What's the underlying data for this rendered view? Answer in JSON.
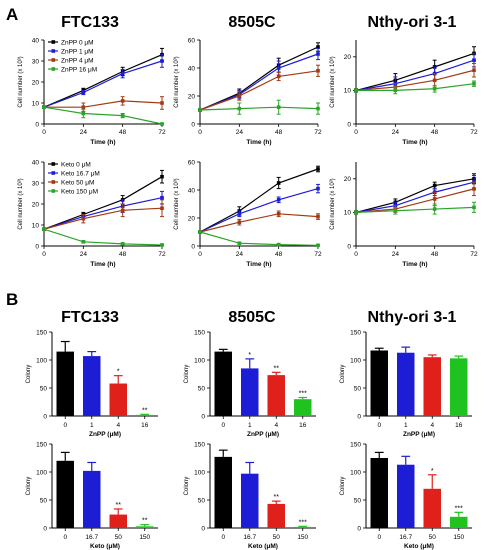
{
  "panel_labels": [
    "A",
    "B"
  ],
  "columns": [
    "FTC133",
    "8505C",
    "Nthy-ori 3-1"
  ],
  "colors": {
    "black": "#000000",
    "blue": "#1d1dd6",
    "red": "#e0201b",
    "green": "#1fc21f",
    "brown": "#a33a12",
    "line_green": "#2aa52a"
  },
  "chart_data": [
    {
      "type": "line",
      "id": "a-ftc-znpp",
      "xlabel": "Time (h)",
      "ylabel": "Cell number (x 10³)",
      "x": [
        0,
        24,
        48,
        72
      ],
      "xlim": [
        0,
        72
      ],
      "ylim": [
        0,
        40
      ],
      "yticks": [
        0,
        10,
        20,
        30,
        40
      ],
      "legend": "top-left",
      "series": [
        {
          "name": "ZnPP 0 μM",
          "color": "black",
          "values": [
            8,
            16,
            25,
            33
          ],
          "err": [
            0.5,
            1,
            2,
            3
          ]
        },
        {
          "name": "ZnPP 1 μM",
          "color": "blue",
          "values": [
            8,
            15,
            24,
            30
          ],
          "err": [
            0.5,
            1,
            2,
            3
          ]
        },
        {
          "name": "ZnPP 4 μM",
          "color": "brown",
          "values": [
            8,
            8,
            11,
            10
          ],
          "err": [
            0.5,
            2,
            2,
            3
          ]
        },
        {
          "name": "ZnPP 16 μM",
          "color": "line_green",
          "values": [
            8,
            5,
            4,
            0
          ],
          "err": [
            0.5,
            2,
            1,
            0.5
          ]
        }
      ]
    },
    {
      "type": "line",
      "id": "a-8505c-znpp",
      "xlabel": "Time (h)",
      "ylabel": "Cell number (x 10³)",
      "x": [
        0,
        24,
        48,
        72
      ],
      "xlim": [
        0,
        72
      ],
      "ylim": [
        0,
        60
      ],
      "yticks": [
        0,
        20,
        40,
        60
      ],
      "series": [
        {
          "name": "ZnPP 0 μM",
          "color": "black",
          "values": [
            10,
            22,
            42,
            55
          ],
          "err": [
            1,
            3,
            5,
            3
          ]
        },
        {
          "name": "ZnPP 1 μM",
          "color": "blue",
          "values": [
            10,
            21,
            40,
            50
          ],
          "err": [
            1,
            3,
            5,
            4
          ]
        },
        {
          "name": "ZnPP 4 μM",
          "color": "brown",
          "values": [
            10,
            20,
            34,
            38
          ],
          "err": [
            1,
            3,
            3,
            4
          ]
        },
        {
          "name": "ZnPP 16 μM",
          "color": "line_green",
          "values": [
            10,
            11,
            12,
            11
          ],
          "err": [
            1,
            4,
            5,
            4
          ]
        }
      ]
    },
    {
      "type": "line",
      "id": "a-nthy-znpp",
      "xlabel": "Time (h)",
      "ylabel": "Cell number (x 10³)",
      "x": [
        0,
        24,
        48,
        72
      ],
      "xlim": [
        0,
        72
      ],
      "ylim": [
        0,
        25
      ],
      "yticks": [
        0,
        10,
        20
      ],
      "series": [
        {
          "name": "ZnPP 0 μM",
          "color": "black",
          "values": [
            10,
            13,
            17,
            21
          ],
          "err": [
            0.5,
            2,
            2,
            2
          ]
        },
        {
          "name": "ZnPP 1 μM",
          "color": "blue",
          "values": [
            10,
            12,
            15,
            19
          ],
          "err": [
            0.5,
            2,
            2,
            2
          ]
        },
        {
          "name": "ZnPP 4 μM",
          "color": "brown",
          "values": [
            10,
            11,
            13,
            16
          ],
          "err": [
            0.5,
            1,
            2,
            2
          ]
        },
        {
          "name": "ZnPP 16 μM",
          "color": "line_green",
          "values": [
            10,
            10,
            10.5,
            12
          ],
          "err": [
            0.5,
            1,
            1,
            0.8
          ]
        }
      ]
    },
    {
      "type": "line",
      "id": "a-ftc-keto",
      "xlabel": "Time (h)",
      "ylabel": "Cell number (x 10³)",
      "x": [
        0,
        24,
        48,
        72
      ],
      "xlim": [
        0,
        72
      ],
      "ylim": [
        0,
        40
      ],
      "yticks": [
        0,
        10,
        20,
        30,
        40
      ],
      "legend": "top-left",
      "series": [
        {
          "name": "Keto 0 μM",
          "color": "black",
          "values": [
            8,
            15,
            22,
            33
          ],
          "err": [
            0.5,
            1,
            2,
            3
          ]
        },
        {
          "name": "Keto 16.7 μM",
          "color": "blue",
          "values": [
            8,
            14,
            19,
            23
          ],
          "err": [
            0.5,
            1,
            3,
            3
          ]
        },
        {
          "name": "Keto 50 μM",
          "color": "brown",
          "values": [
            8,
            13,
            17,
            18
          ],
          "err": [
            0.5,
            2,
            3,
            4
          ]
        },
        {
          "name": "Keto 150 μM",
          "color": "line_green",
          "values": [
            8,
            2,
            1,
            0.5
          ],
          "err": [
            0.5,
            0.5,
            0.5,
            0.3
          ]
        }
      ]
    },
    {
      "type": "line",
      "id": "a-8505c-keto",
      "xlabel": "Time (h)",
      "ylabel": "Cell number (x 10³)",
      "x": [
        0,
        24,
        48,
        72
      ],
      "xlim": [
        0,
        72
      ],
      "ylim": [
        0,
        60
      ],
      "yticks": [
        0,
        20,
        40,
        60
      ],
      "series": [
        {
          "name": "Keto 0 μM",
          "color": "black",
          "values": [
            10,
            25,
            45,
            55
          ],
          "err": [
            1,
            3,
            4,
            2
          ]
        },
        {
          "name": "Keto 16.7 μM",
          "color": "blue",
          "values": [
            10,
            23,
            33,
            41
          ],
          "err": [
            1,
            2,
            2,
            3
          ]
        },
        {
          "name": "Keto 50 μM",
          "color": "brown",
          "values": [
            10,
            17,
            23,
            21
          ],
          "err": [
            1,
            2,
            2,
            2
          ]
        },
        {
          "name": "Keto 150 μM",
          "color": "line_green",
          "values": [
            10,
            2,
            1,
            0.5
          ],
          "err": [
            1,
            0.5,
            0.5,
            0.3
          ]
        }
      ]
    },
    {
      "type": "line",
      "id": "a-nthy-keto",
      "xlabel": "Time (h)",
      "ylabel": "Cell number (x 10³)",
      "x": [
        0,
        24,
        48,
        72
      ],
      "xlim": [
        0,
        72
      ],
      "ylim": [
        0,
        25
      ],
      "yticks": [
        0,
        10,
        20
      ],
      "series": [
        {
          "name": "Keto 0 μM",
          "color": "black",
          "values": [
            10,
            13,
            18,
            20
          ],
          "err": [
            0.5,
            1,
            1,
            1.5
          ]
        },
        {
          "name": "Keto 16.7 μM",
          "color": "blue",
          "values": [
            10,
            12,
            16,
            19
          ],
          "err": [
            0.5,
            1,
            1,
            2
          ]
        },
        {
          "name": "Keto 50 μM",
          "color": "brown",
          "values": [
            10,
            11,
            14,
            17
          ],
          "err": [
            0.5,
            1,
            2,
            2
          ]
        },
        {
          "name": "Keto 150 μM",
          "color": "line_green",
          "values": [
            10,
            10.5,
            11,
            11.5
          ],
          "err": [
            0.5,
            1,
            1.5,
            1.5
          ]
        }
      ]
    },
    {
      "type": "bar",
      "id": "b-ftc-znpp",
      "xlabel": "ZnPP (μM)",
      "ylabel": "Colony",
      "categories": [
        "0",
        "1",
        "4",
        "16"
      ],
      "ylim": [
        0,
        150
      ],
      "yticks": [
        0,
        50,
        100,
        150
      ],
      "values": [
        115,
        107,
        58,
        2
      ],
      "err": [
        18,
        8,
        14,
        1
      ],
      "colors": [
        "black",
        "blue",
        "red",
        "green"
      ],
      "significance": [
        "",
        "",
        "*",
        "**"
      ]
    },
    {
      "type": "bar",
      "id": "b-8505c-znpp",
      "xlabel": "ZnPP (μM)",
      "ylabel": "Colony",
      "categories": [
        "0",
        "1",
        "4",
        "16"
      ],
      "ylim": [
        0,
        150
      ],
      "yticks": [
        0,
        50,
        100,
        150
      ],
      "values": [
        115,
        85,
        73,
        30
      ],
      "err": [
        4,
        17,
        5,
        3
      ],
      "colors": [
        "black",
        "blue",
        "red",
        "green"
      ],
      "significance": [
        "",
        "*",
        "**",
        "***"
      ]
    },
    {
      "type": "bar",
      "id": "b-nthy-znpp",
      "xlabel": "ZnPP (μM)",
      "ylabel": "Colony",
      "categories": [
        "0",
        "1",
        "4",
        "16"
      ],
      "ylim": [
        0,
        150
      ],
      "yticks": [
        0,
        50,
        100,
        150
      ],
      "values": [
        117,
        113,
        105,
        103
      ],
      "err": [
        4,
        10,
        4,
        4
      ],
      "colors": [
        "black",
        "blue",
        "red",
        "green"
      ],
      "significance": [
        "",
        "",
        "",
        ""
      ]
    },
    {
      "type": "bar",
      "id": "b-ftc-keto",
      "xlabel": "Keto (μM)",
      "ylabel": "Colony",
      "categories": [
        "0",
        "16.7",
        "50",
        "150"
      ],
      "ylim": [
        0,
        150
      ],
      "yticks": [
        0,
        50,
        100,
        150
      ],
      "values": [
        120,
        102,
        24,
        3
      ],
      "err": [
        15,
        15,
        10,
        3
      ],
      "colors": [
        "black",
        "blue",
        "red",
        "green"
      ],
      "significance": [
        "",
        "",
        "**",
        "**"
      ]
    },
    {
      "type": "bar",
      "id": "b-8505c-keto",
      "xlabel": "Keto (μM)",
      "ylabel": "Colony",
      "categories": [
        "0",
        "16.7",
        "50",
        "150"
      ],
      "ylim": [
        0,
        150
      ],
      "yticks": [
        0,
        50,
        100,
        150
      ],
      "values": [
        127,
        97,
        43,
        2
      ],
      "err": [
        12,
        20,
        5,
        1
      ],
      "colors": [
        "black",
        "blue",
        "red",
        "green"
      ],
      "significance": [
        "",
        "",
        "**",
        "***"
      ]
    },
    {
      "type": "bar",
      "id": "b-nthy-keto",
      "xlabel": "Keto (μM)",
      "ylabel": "Colony",
      "categories": [
        "0",
        "16.7",
        "50",
        "150"
      ],
      "ylim": [
        0,
        150
      ],
      "yticks": [
        0,
        50,
        100,
        150
      ],
      "values": [
        125,
        113,
        70,
        20
      ],
      "err": [
        10,
        15,
        25,
        8
      ],
      "colors": [
        "black",
        "blue",
        "red",
        "green"
      ],
      "significance": [
        "",
        "",
        "*",
        "***"
      ]
    }
  ]
}
